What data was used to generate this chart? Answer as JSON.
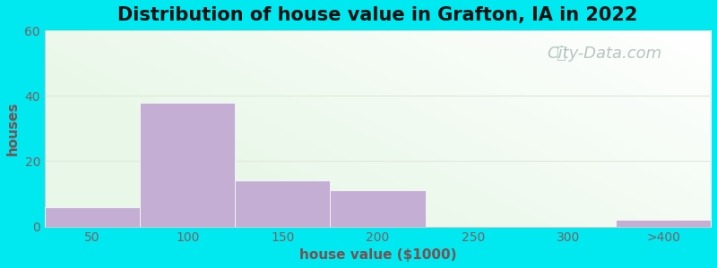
{
  "title": "Distribution of house value in Grafton, IA in 2022",
  "xlabel": "house value ($1000)",
  "ylabel": "houses",
  "bar_labels": [
    "50",
    "100",
    "150",
    "200",
    "250",
    "300",
    ">400"
  ],
  "bar_heights": [
    6,
    38,
    14,
    11,
    0,
    0,
    2
  ],
  "bar_color": "#c4aed4",
  "bar_edgecolor": "#c4aed4",
  "ylim": [
    0,
    60
  ],
  "yticks": [
    0,
    20,
    40,
    60
  ],
  "background_outer": "#00e8f0",
  "title_fontsize": 15,
  "axis_label_fontsize": 11,
  "tick_fontsize": 10,
  "tick_color": "#7a6060",
  "label_color": "#7a5050",
  "title_color": "#111111",
  "watermark_text": "City-Data.com",
  "watermark_color": "#aabcb8",
  "watermark_fontsize": 13,
  "grid_color": "#e0e8d8",
  "bg_color_left": "#c8e8c0",
  "bg_color_right": "#f0f8f0",
  "bg_color_top": "#ffffff"
}
